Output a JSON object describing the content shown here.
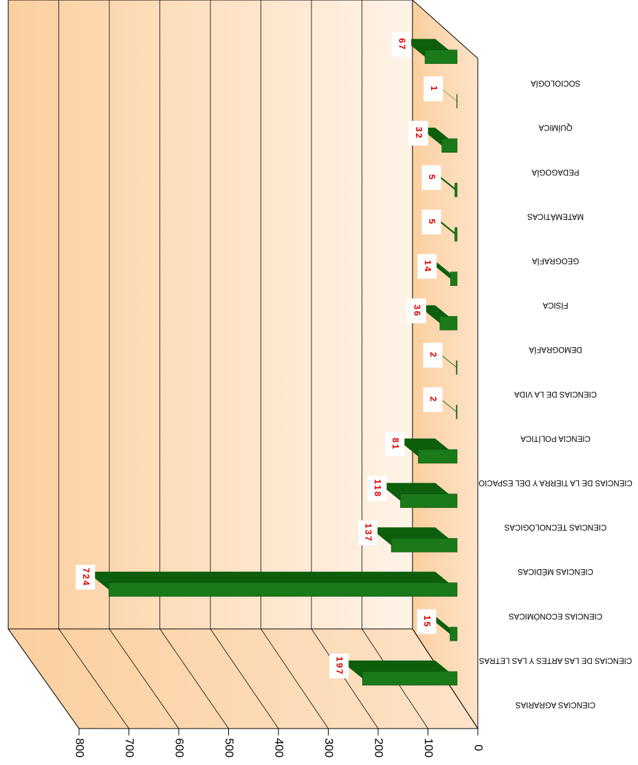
{
  "chart_data": {
    "type": "bar",
    "categories": [
      "CIENCIAS AGRARIAS",
      "CIENCIAS DE LAS ARTES Y LAS LETRAS",
      "CIENCIAS ECONÓMICAS",
      "CIENCIAS MÉDICAS",
      "CIENCIAS TECNOLÓGICAS",
      "CIENCIAS DE LA TIERRA Y DEL ESPACIO",
      "CIENCIA POLÍTICA",
      "CIENCIAS DE LA VIDA",
      "DEMOGRAFÍA",
      "FÍSICA",
      "GEOGRAFÍA",
      "MATEMÁTICAS",
      "PEDAGOGÍA",
      "QUÍMICA",
      "SOCIOLOGÍA"
    ],
    "values": [
      197,
      15,
      724,
      137,
      118,
      81,
      2,
      2,
      36,
      14,
      5,
      5,
      32,
      1,
      67
    ],
    "color": "#1a7a1a",
    "xlim": [
      0,
      800
    ],
    "xticks": [
      0,
      100,
      200,
      300,
      400,
      500,
      600,
      700,
      800
    ],
    "grid": true
  }
}
